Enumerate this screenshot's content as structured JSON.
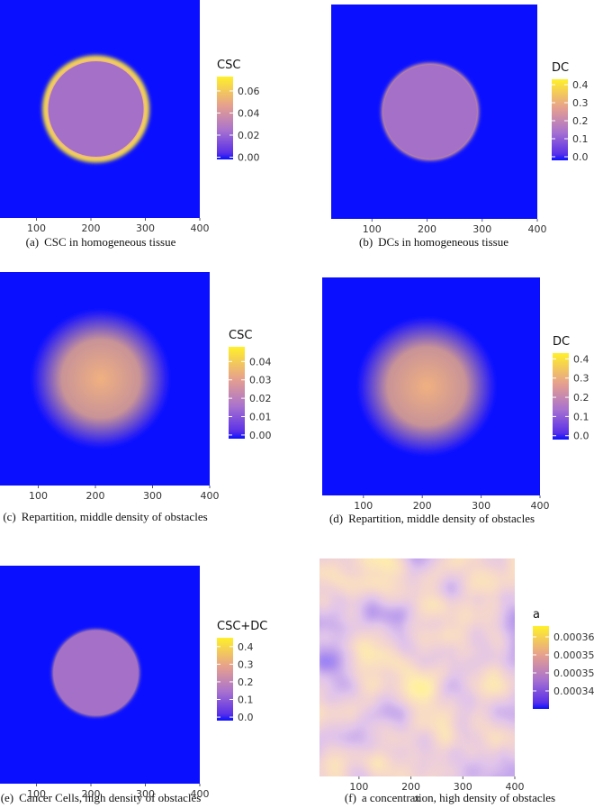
{
  "panels": [
    {
      "label": "(a)",
      "caption": "CSC in homogeneous tissue",
      "colorbar_title": "CSC",
      "clim": [
        -0.002,
        0.073
      ],
      "cticks": [
        {
          "value": 0,
          "label": "0.00"
        },
        {
          "value": 0.02,
          "label": "0.02"
        },
        {
          "value": 0.04,
          "label": "0.04"
        },
        {
          "value": 0.06,
          "label": "0.06"
        }
      ],
      "xlim": [
        33,
        400
      ],
      "xticks": [
        100,
        200,
        300,
        400
      ]
    },
    {
      "label": "(b)",
      "caption": "DCs in homogeneous tissue",
      "colorbar_title": "DC",
      "clim": [
        -0.02,
        0.43
      ],
      "cticks": [
        {
          "value": 0,
          "label": "0.0"
        },
        0.1,
        0.2,
        0.3,
        0.4
      ],
      "xlim": [
        26,
        400
      ],
      "xticks": [
        100,
        200,
        300,
        400
      ]
    },
    {
      "label": "(c)",
      "caption": "Repartition, middle density of obstacles",
      "colorbar_title": "CSC",
      "clim": [
        -0.002,
        0.048
      ],
      "cticks": [
        {
          "value": 0,
          "label": "0.00"
        },
        0.01,
        0.02,
        0.03,
        0.04
      ],
      "xlim": [
        33,
        400
      ],
      "xticks": [
        100,
        200,
        300,
        400
      ]
    },
    {
      "label": "(d)",
      "caption": "Repartition, middle density of obstacles",
      "colorbar_title": "DC",
      "clim": [
        -0.02,
        0.43
      ],
      "cticks": [
        {
          "value": 0,
          "label": "0.0"
        },
        0.1,
        0.2,
        0.3,
        0.4
      ],
      "xlim": [
        30,
        400
      ],
      "xticks": [
        100,
        200,
        300,
        400
      ]
    },
    {
      "label": "(e)",
      "caption": "Cancer Cells, high density of obstacles",
      "colorbar_title": "CSC+DC",
      "clim": [
        -0.02,
        0.45
      ],
      "cticks": [
        {
          "value": 0,
          "label": "0.0"
        },
        0.1,
        0.2,
        0.3,
        0.4
      ],
      "xlim": [
        33,
        400
      ],
      "xticks": [
        100,
        200,
        300,
        400
      ]
    },
    {
      "label": "(f)",
      "caption": "a concentration, high density of obstacles",
      "colorbar_title": "a",
      "clim": [
        0.00034,
        0.000363
      ],
      "cticks": [
        0.000345,
        {
          "value": 0.00035,
          "label": "0.000350"
        },
        0.000355,
        {
          "value": 0.00036,
          "label": "0.000360"
        }
      ],
      "xlim": [
        24,
        400
      ],
      "xticks": [
        100,
        200,
        300,
        400
      ],
      "xlabel": "x"
    }
  ]
}
